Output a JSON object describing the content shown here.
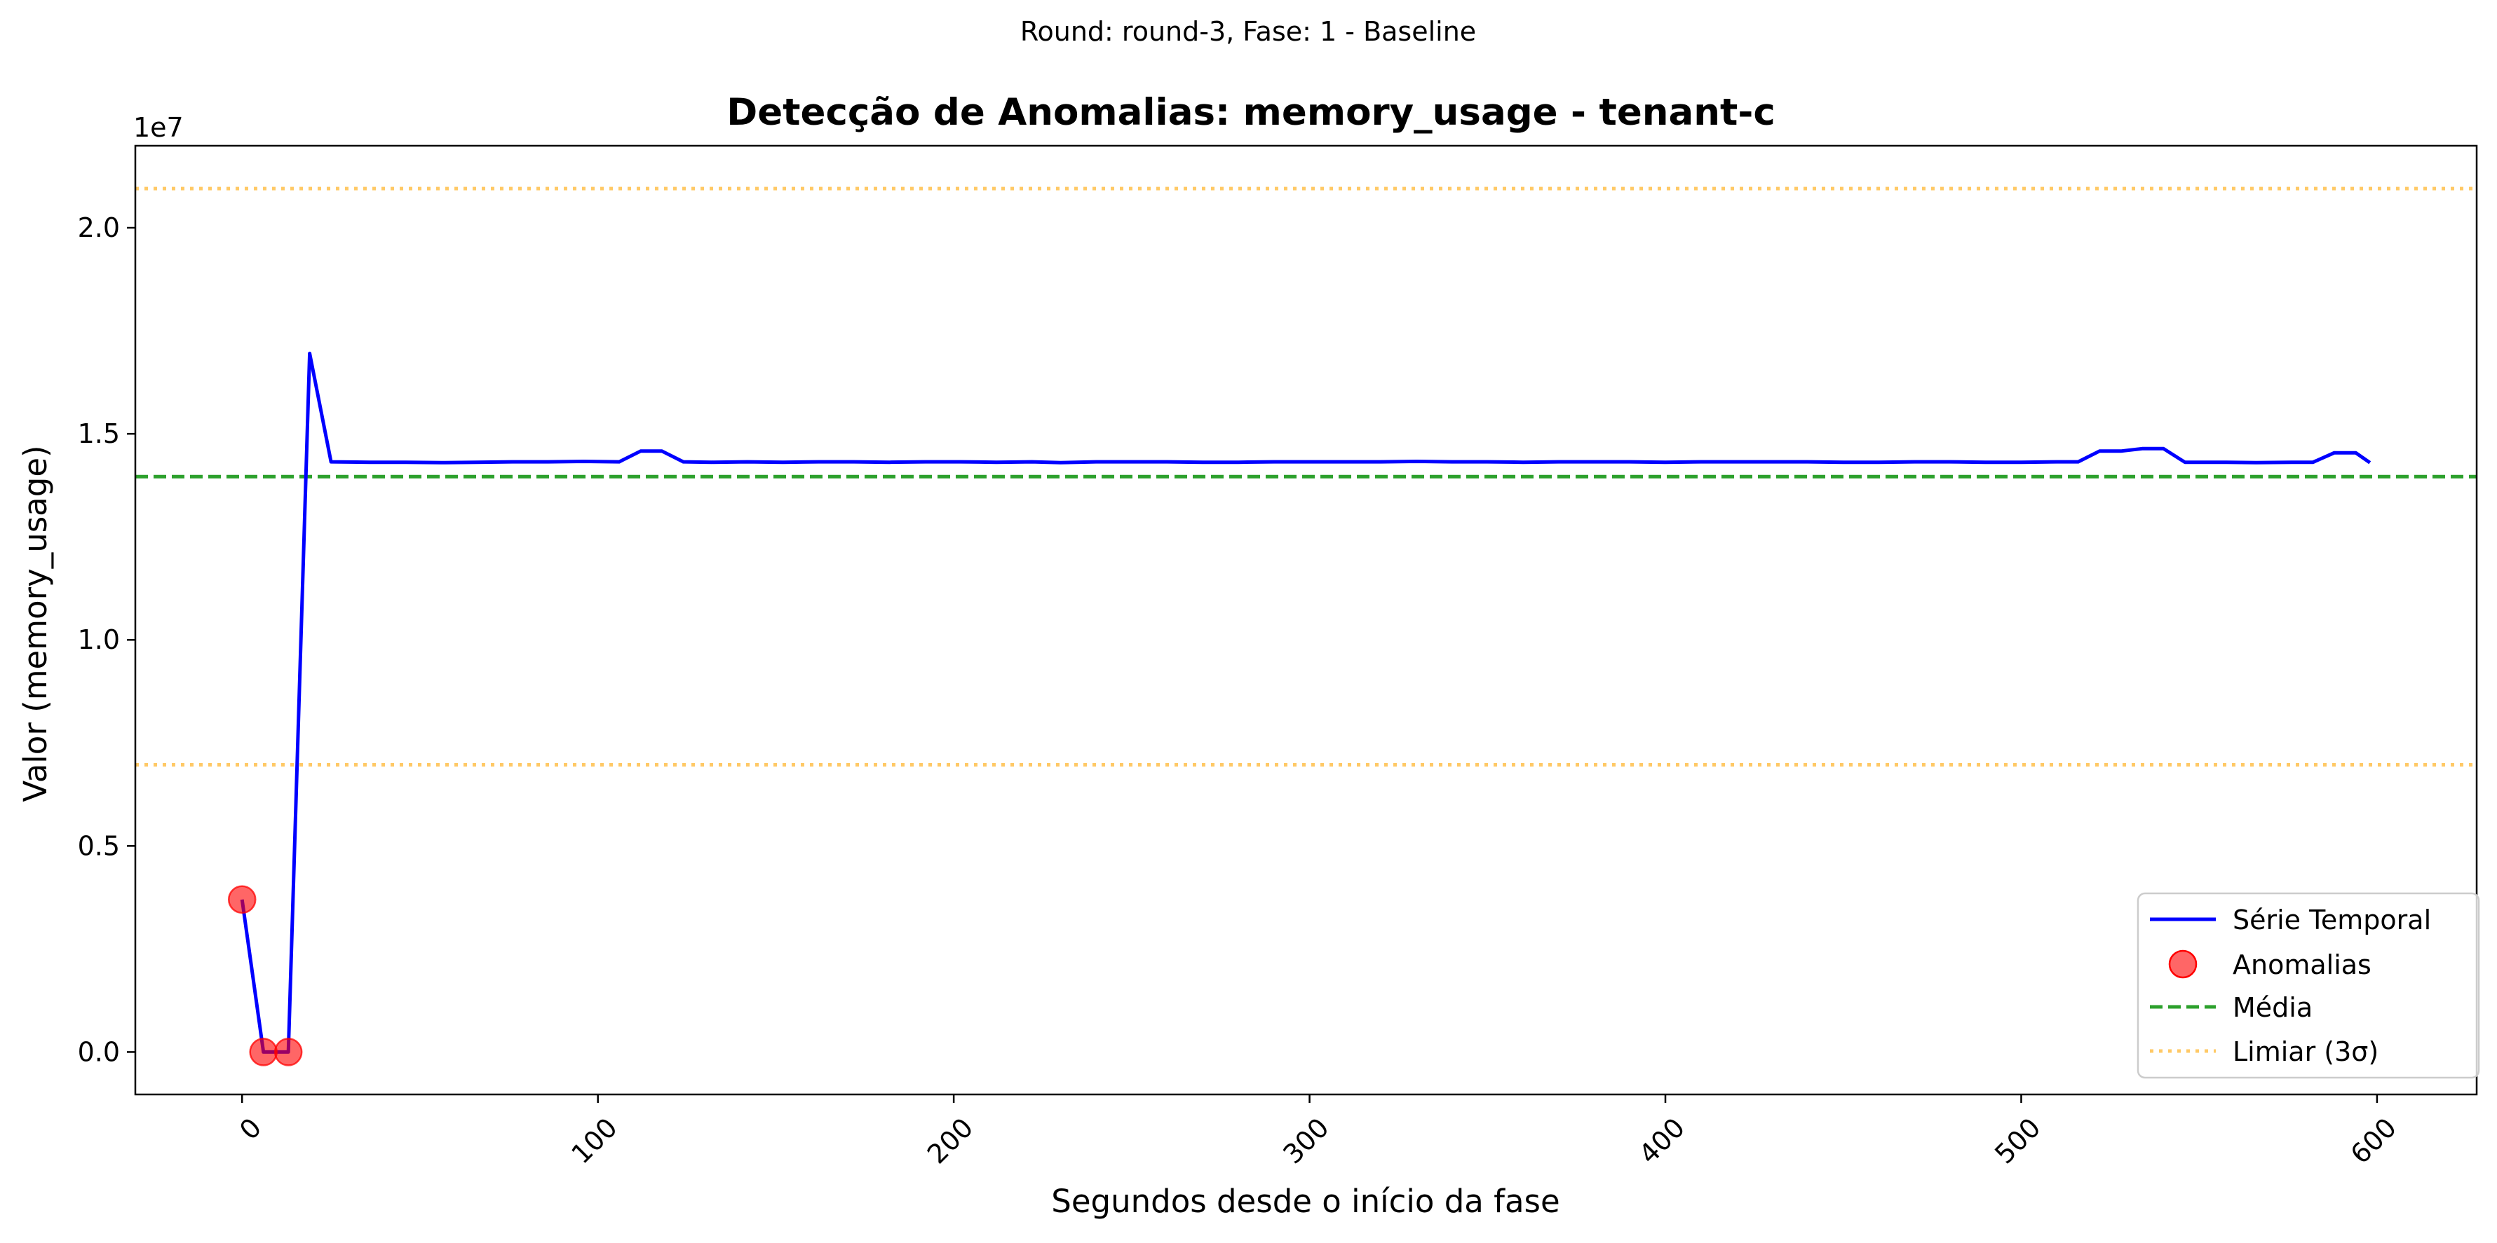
{
  "chart_data": {
    "type": "line",
    "suptitle": "Round: round-3, Fase: 1 - Baseline",
    "title": "Detecção de Anomalias: memory_usage - tenant-c",
    "xlabel": "Segundos desde o início da fase",
    "ylabel": "Valor (memory_usage)",
    "y_offset_label": "1e7",
    "xlim": [
      -30,
      628
    ],
    "ylim": [
      -1030000,
      21990000
    ],
    "x_ticks": [
      0,
      100,
      200,
      300,
      400,
      500,
      600
    ],
    "x_tick_labels": [
      "0",
      "100",
      "200",
      "300",
      "400",
      "500",
      "600"
    ],
    "y_ticks": [
      0,
      5000000,
      10000000,
      15000000,
      20000000
    ],
    "y_tick_labels": [
      "0.0",
      "0.5",
      "1.0",
      "1.5",
      "2.0"
    ],
    "x_tick_rotation_deg": -45,
    "grid": false,
    "legend_position": "lower-right",
    "series": [
      {
        "name": "Série Temporal",
        "kind": "line",
        "color": "#0000ff",
        "x": [
          0,
          6,
          13,
          19,
          25,
          36,
          46,
          56,
          66,
          76,
          86,
          96,
          106,
          112,
          118,
          124,
          132,
          142,
          152,
          162,
          172,
          182,
          192,
          202,
          212,
          222,
          230,
          240,
          250,
          260,
          270,
          280,
          290,
          300,
          310,
          320,
          330,
          340,
          350,
          360,
          370,
          380,
          390,
          400,
          410,
          420,
          430,
          440,
          450,
          460,
          470,
          480,
          490,
          500,
          510,
          516,
          522,
          528,
          534,
          540,
          546,
          556,
          566,
          576,
          582,
          588,
          594,
          598
        ],
        "y": [
          3700000,
          0,
          0,
          16950000,
          14320000,
          14310000,
          14310000,
          14300000,
          14310000,
          14320000,
          14320000,
          14330000,
          14320000,
          14580000,
          14580000,
          14320000,
          14310000,
          14320000,
          14310000,
          14320000,
          14320000,
          14310000,
          14320000,
          14320000,
          14310000,
          14320000,
          14300000,
          14320000,
          14320000,
          14320000,
          14310000,
          14310000,
          14320000,
          14320000,
          14320000,
          14320000,
          14330000,
          14320000,
          14320000,
          14310000,
          14320000,
          14320000,
          14320000,
          14310000,
          14320000,
          14320000,
          14320000,
          14320000,
          14310000,
          14310000,
          14320000,
          14320000,
          14310000,
          14310000,
          14320000,
          14320000,
          14580000,
          14580000,
          14640000,
          14640000,
          14310000,
          14310000,
          14300000,
          14310000,
          14310000,
          14540000,
          14540000,
          14300000
        ]
      },
      {
        "name": "Anomalias",
        "kind": "scatter",
        "color": "#ff0000",
        "alpha": 0.6,
        "x": [
          0,
          6,
          13
        ],
        "y": [
          3700000,
          0,
          0
        ]
      },
      {
        "name": "Média",
        "kind": "hline",
        "style": "dashed",
        "color": "#2ca02c",
        "y": 13960000
      },
      {
        "name": "Limiar (3σ)",
        "kind": "hline",
        "style": "dotted",
        "color": "#ffa500",
        "alpha": 0.6,
        "y": [
          6970000,
          20950000
        ]
      }
    ]
  }
}
